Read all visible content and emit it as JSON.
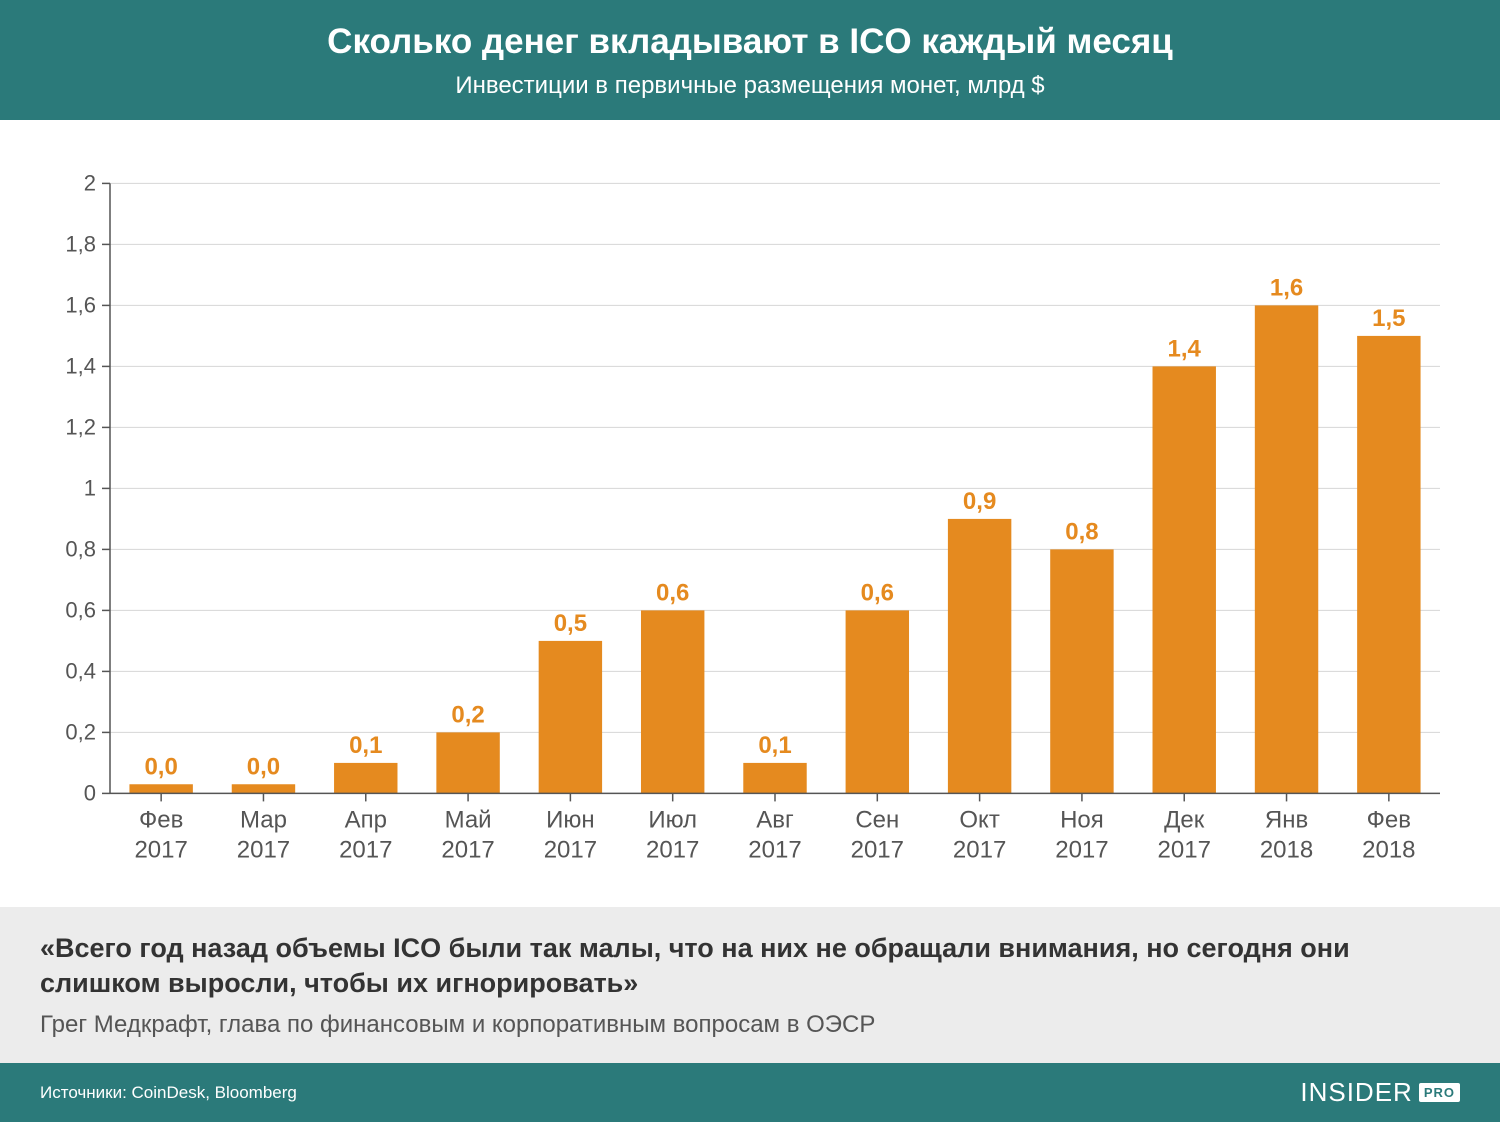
{
  "header": {
    "title": "Сколько денег вкладывают в ICO каждый месяц",
    "subtitle": "Инвестиции в первичные размещения монет, млрд $",
    "background_color": "#2b7a7a",
    "text_color": "#ffffff",
    "title_fontsize": 35,
    "subtitle_fontsize": 24
  },
  "chart": {
    "type": "bar",
    "categories": [
      {
        "line1": "Фев",
        "line2": "2017"
      },
      {
        "line1": "Мар",
        "line2": "2017"
      },
      {
        "line1": "Апр",
        "line2": "2017"
      },
      {
        "line1": "Май",
        "line2": "2017"
      },
      {
        "line1": "Июн",
        "line2": "2017"
      },
      {
        "line1": "Июл",
        "line2": "2017"
      },
      {
        "line1": "Авг",
        "line2": "2017"
      },
      {
        "line1": "Сен",
        "line2": "2017"
      },
      {
        "line1": "Окт",
        "line2": "2017"
      },
      {
        "line1": "Ноя",
        "line2": "2017"
      },
      {
        "line1": "Дек",
        "line2": "2017"
      },
      {
        "line1": "Янв",
        "line2": "2018"
      },
      {
        "line1": "Фев",
        "line2": "2018"
      }
    ],
    "values": [
      0.03,
      0.03,
      0.1,
      0.2,
      0.5,
      0.6,
      0.1,
      0.6,
      0.9,
      0.8,
      1.4,
      1.6,
      1.5
    ],
    "value_labels": [
      "0,0",
      "0,0",
      "0,1",
      "0,2",
      "0,5",
      "0,6",
      "0,1",
      "0,6",
      "0,9",
      "0,8",
      "1,4",
      "1,6",
      "1,5"
    ],
    "bar_color": "#e58a1f",
    "value_label_color": "#e58a1f",
    "value_label_fontsize": 24,
    "value_label_fontweight": "bold",
    "axis_color": "#555555",
    "grid_color": "#d6d6d6",
    "tick_label_color": "#555555",
    "x_label_fontsize": 24,
    "y_label_fontsize": 22,
    "ylim": [
      0,
      2
    ],
    "ytick_step": 0.2,
    "ytick_labels": [
      "0",
      "0,2",
      "0,4",
      "0,6",
      "0,8",
      "1",
      "1,2",
      "1,4",
      "1,6",
      "1,8",
      "2"
    ],
    "bar_width_ratio": 0.62,
    "background_color": "#ffffff"
  },
  "quote": {
    "text": "«Всего год назад объемы ICO были так малы, что на них не обращали внимания, но сегодня они слишком выросли, чтобы их игнорировать»",
    "attribution": "Грег Медкрафт, глава по финансовым и корпоративным вопросам в ОЭСР",
    "background_color": "#ececec",
    "quote_fontsize": 27,
    "attribution_fontsize": 24
  },
  "footer": {
    "sources": "Источники: CoinDesk, Bloomberg",
    "logo_main": "INSIDER",
    "logo_badge": "PRO",
    "background_color": "#2b7a7a",
    "text_color": "#ffffff"
  }
}
